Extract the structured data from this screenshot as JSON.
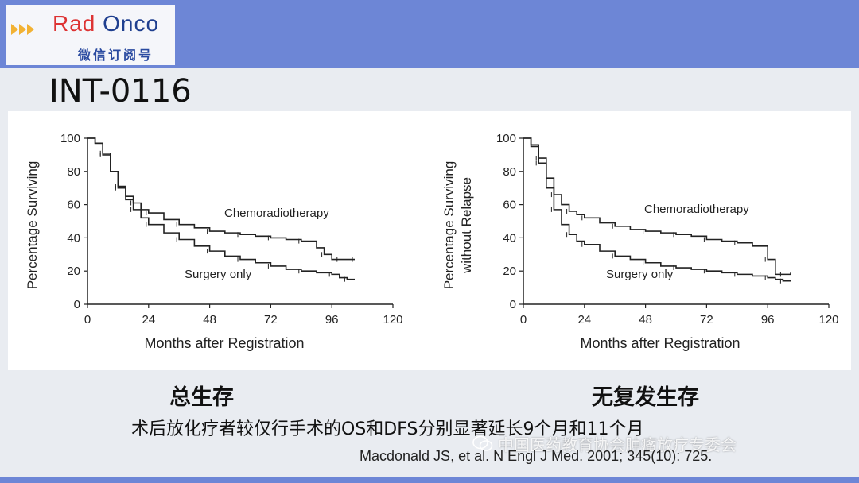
{
  "header": {
    "logo_text_red": "Rad ",
    "logo_text_blue": "Onco",
    "logo_subtitle": "微信订阅号"
  },
  "slide": {
    "title": "INT-0116",
    "summary": "术后放化疗者较仅行手术的OS和DFS分别显著延长9个月和11个月",
    "citation": "Macdonald JS, et al. N Engl J Med. 2001; 345(10): 725.",
    "watermark": "中国医药教育协会肿瘤放疗专委会"
  },
  "colors": {
    "band": "#6d86d6",
    "curve": "#222222"
  },
  "chart_data": [
    {
      "type": "line",
      "caption": "总生存",
      "xlabel": "Months after Registration",
      "ylabel": "Percentage Surviving",
      "ylabel_line2": "",
      "xlim": [
        0,
        120
      ],
      "ylim": [
        0,
        100
      ],
      "xticks": [
        0,
        24,
        48,
        72,
        96,
        120
      ],
      "yticks": [
        0,
        20,
        40,
        60,
        80,
        100
      ],
      "series": [
        {
          "name": "Chemoradiotherapy",
          "x": [
            0,
            3,
            6,
            9,
            12,
            15,
            18,
            21,
            24,
            30,
            36,
            42,
            48,
            54,
            60,
            66,
            72,
            78,
            84,
            90,
            93,
            96,
            99,
            102,
            105
          ],
          "y": [
            100,
            97,
            91,
            80,
            71,
            65,
            61,
            57,
            55,
            51,
            48,
            46,
            44,
            43,
            42,
            41,
            40,
            39,
            38,
            34,
            30,
            27,
            27,
            27,
            27
          ]
        },
        {
          "name": "Surgery only",
          "x": [
            0,
            3,
            6,
            9,
            12,
            15,
            18,
            21,
            24,
            30,
            36,
            42,
            48,
            54,
            60,
            66,
            72,
            78,
            84,
            90,
            96,
            99,
            102,
            105
          ],
          "y": [
            100,
            97,
            90,
            80,
            70,
            63,
            57,
            52,
            48,
            43,
            39,
            35,
            32,
            29,
            27,
            25,
            23,
            21,
            20,
            19,
            18,
            16,
            15,
            15
          ]
        }
      ]
    },
    {
      "type": "line",
      "caption": "无复发生存",
      "xlabel": "Months after Registration",
      "ylabel": "Percentage Surviving",
      "ylabel_line2": "without Relapse",
      "xlim": [
        0,
        120
      ],
      "ylim": [
        0,
        100
      ],
      "xticks": [
        0,
        24,
        48,
        72,
        96,
        120
      ],
      "yticks": [
        0,
        20,
        40,
        60,
        80,
        100
      ],
      "series": [
        {
          "name": "Chemoradiotherapy",
          "x": [
            0,
            3,
            6,
            9,
            12,
            15,
            18,
            21,
            24,
            30,
            36,
            42,
            48,
            54,
            60,
            66,
            72,
            78,
            84,
            90,
            96,
            99,
            102,
            105
          ],
          "y": [
            100,
            96,
            88,
            76,
            66,
            60,
            56,
            54,
            52,
            49,
            47,
            45,
            44,
            43,
            42,
            41,
            39,
            38,
            37,
            35,
            27,
            18,
            18,
            19
          ]
        },
        {
          "name": "Surgery only",
          "x": [
            0,
            3,
            6,
            9,
            12,
            15,
            18,
            21,
            24,
            30,
            36,
            42,
            48,
            54,
            60,
            66,
            72,
            78,
            84,
            90,
            96,
            99,
            102,
            105
          ],
          "y": [
            100,
            95,
            85,
            70,
            57,
            48,
            42,
            38,
            36,
            32,
            29,
            27,
            25,
            23,
            22,
            21,
            20,
            19,
            18,
            17,
            16,
            15,
            14,
            14
          ]
        }
      ]
    }
  ]
}
